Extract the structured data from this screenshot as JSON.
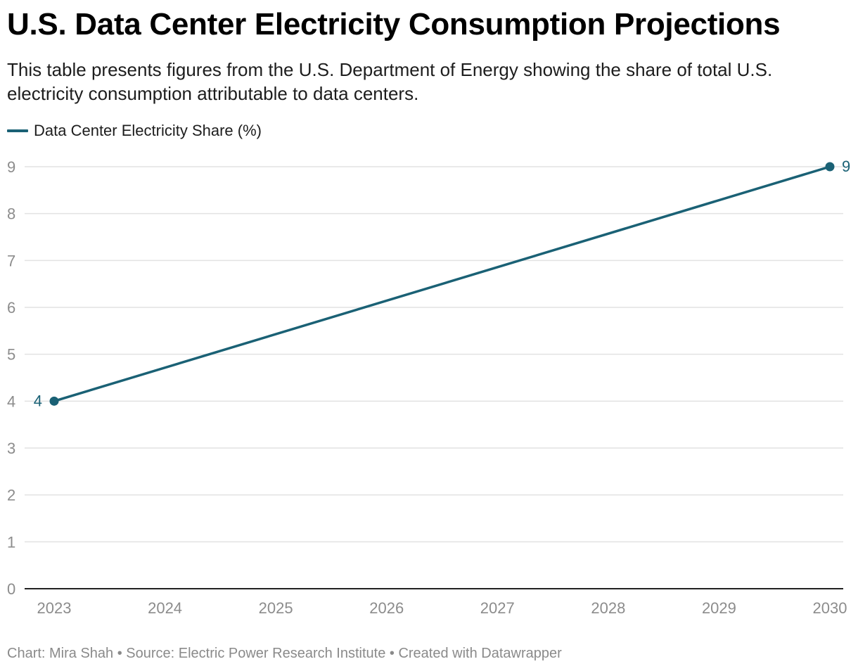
{
  "header": {
    "title": "U.S. Data Center Electricity Consumption Projections",
    "subtitle": "This table presents figures from the U.S. Department of Energy showing the share of total U.S. electricity consumption attributable to data centers."
  },
  "colors": {
    "series": "#1a6175",
    "grid": "#e2e2e2",
    "axis": "#222222",
    "tick_text": "#8c8c8c"
  },
  "chart_data": {
    "type": "line",
    "title": "U.S. Data Center Electricity Consumption Projections",
    "xlabel": "",
    "ylabel": "",
    "x": [
      "2023",
      "2024",
      "2025",
      "2026",
      "2027",
      "2028",
      "2029",
      "2030"
    ],
    "series": [
      {
        "name": "Data Center Electricity Share (%)",
        "points": [
          {
            "x": "2023",
            "y": 4,
            "label": "4"
          },
          {
            "x": "2030",
            "y": 9,
            "label": "9"
          }
        ]
      }
    ],
    "yticks": [
      0,
      1,
      2,
      3,
      4,
      5,
      6,
      7,
      8,
      9
    ],
    "ylim": [
      0,
      9
    ],
    "grid": true,
    "legend": "top-left"
  },
  "footer": {
    "credit": "Chart: Mira Shah • Source: Electric Power Research Institute • Created with Datawrapper"
  }
}
